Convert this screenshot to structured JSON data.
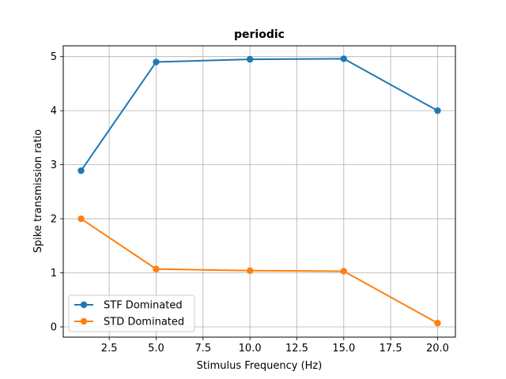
{
  "chart_data": {
    "type": "line",
    "title": "periodic",
    "xlabel": "Stimulus Frequency (Hz)",
    "ylabel": "Spike transmission ratio",
    "xlim": [
      0.05,
      20.95
    ],
    "ylim": [
      -0.19,
      5.2
    ],
    "xticks": [
      2.5,
      5.0,
      7.5,
      10.0,
      12.5,
      15.0,
      17.5,
      20.0
    ],
    "xtick_labels": [
      "2.5",
      "5.0",
      "7.5",
      "10.0",
      "12.5",
      "15.0",
      "17.5",
      "20.0"
    ],
    "yticks": [
      0,
      1,
      2,
      3,
      4,
      5
    ],
    "ytick_labels": [
      "0",
      "1",
      "2",
      "3",
      "4",
      "5"
    ],
    "grid": true,
    "legend_position": "lower-left",
    "x": [
      1,
      5,
      10,
      15,
      20
    ],
    "series": [
      {
        "name": "STF Dominated",
        "color": "#1f77b4",
        "values": [
          2.89,
          4.9,
          4.95,
          4.96,
          4.0
        ]
      },
      {
        "name": "STD Dominated",
        "color": "#ff7f0e",
        "values": [
          2.0,
          1.07,
          1.04,
          1.03,
          0.07
        ]
      }
    ]
  }
}
